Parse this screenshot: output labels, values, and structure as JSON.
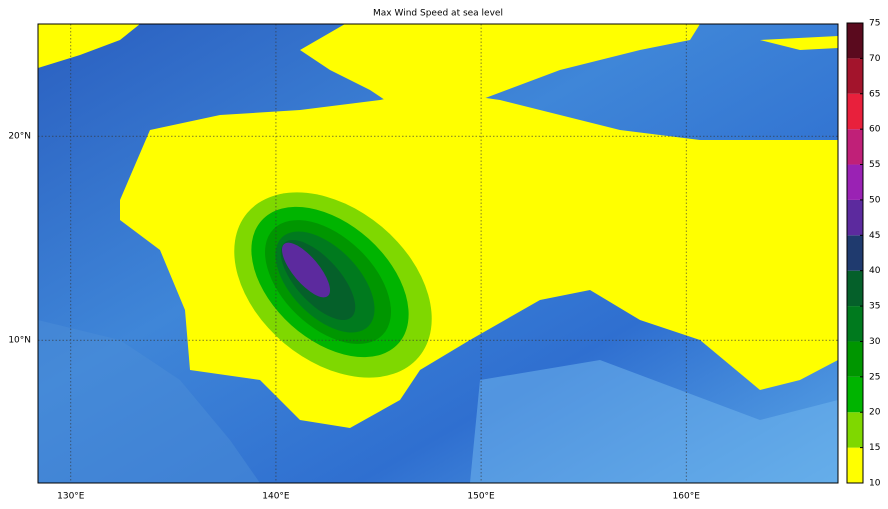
{
  "title": "Max Wind Speed at sea level",
  "lon": {
    "lim": [
      128.4,
      167.4
    ],
    "ticks": [
      {
        "value": 130,
        "label": "130°E"
      },
      {
        "value": 140,
        "label": "140°E"
      },
      {
        "value": 150,
        "label": "150°E"
      },
      {
        "value": 160,
        "label": "160°E"
      }
    ]
  },
  "lat": {
    "lim": [
      3,
      25.5
    ],
    "ticks": [
      {
        "value": 10,
        "label": "10°N"
      },
      {
        "value": 20,
        "label": "20°N"
      }
    ]
  },
  "colorbar": {
    "levels": [
      10,
      15,
      20,
      25,
      30,
      35,
      40,
      45,
      50,
      55,
      60,
      65,
      70,
      75
    ],
    "colors": [
      "#ffff00",
      "#7fd800",
      "#00b400",
      "#009600",
      "#007a1e",
      "#05602a",
      "#1f3a6e",
      "#5c2a9e",
      "#9a22b4",
      "#c02078",
      "#e8203c",
      "#a3142c",
      "#5a0a1e"
    ]
  }
}
